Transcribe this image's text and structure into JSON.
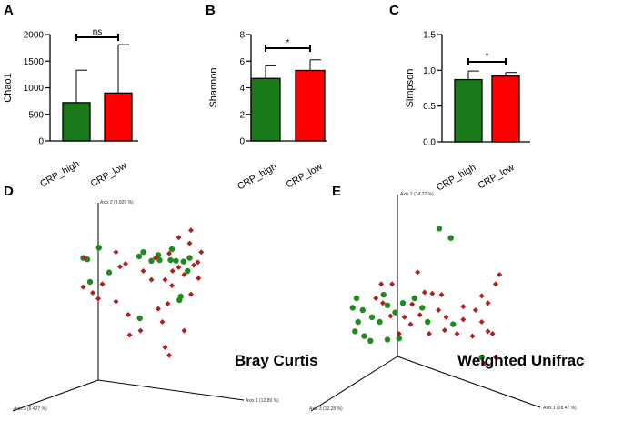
{
  "colors": {
    "high": "#1a7a1a",
    "low": "#ff0000",
    "pcoa_green": "#1e8b1e",
    "pcoa_red": "#b21e1e"
  },
  "chart_data": [
    {
      "panel": "A",
      "type": "bar",
      "ylabel": "Chao1",
      "ylim": [
        0,
        2000
      ],
      "yticks": [
        "0",
        "500",
        "1000",
        "1500",
        "2000"
      ],
      "ytick_values": [
        0,
        500,
        1000,
        1500,
        2000
      ],
      "categories": [
        "CRP_high",
        "CRP_low"
      ],
      "values": [
        720,
        900
      ],
      "errors": [
        610,
        910
      ],
      "significance": "ns"
    },
    {
      "panel": "B",
      "type": "bar",
      "ylabel": "Shannon",
      "ylim": [
        0,
        8
      ],
      "yticks": [
        "0",
        "2",
        "4",
        "6",
        "8"
      ],
      "ytick_values": [
        0,
        2,
        4,
        6,
        8
      ],
      "categories": [
        "CRP_high",
        "CRP_low"
      ],
      "values": [
        4.7,
        5.3
      ],
      "errors": [
        0.95,
        0.8
      ],
      "significance": "*"
    },
    {
      "panel": "C",
      "type": "bar",
      "ylabel": "Simpson",
      "ylim": [
        0,
        1.5
      ],
      "yticks": [
        "0.0",
        "0.5",
        "1.0",
        "1.5"
      ],
      "ytick_values": [
        0,
        0.5,
        1.0,
        1.5
      ],
      "categories": [
        "CRP_high",
        "CRP_low"
      ],
      "values": [
        0.87,
        0.92
      ],
      "errors": [
        0.12,
        0.05
      ],
      "significance": "*"
    },
    {
      "panel": "D",
      "type": "scatter",
      "method": "PCoA",
      "title": "Bray Curtis",
      "axis_labels": {
        "axis1": "Axis 1 (12.89 %)",
        "axis2": "Axis 2 (8.929 %)",
        "axis3": "Axis 3 (6.427 %)"
      },
      "series": [
        {
          "name": "CRP_high",
          "marker": "circle",
          "points": [
            [
              -0.55,
              0.72
            ],
            [
              0.1,
              0.66
            ],
            [
              0.32,
              0.62
            ],
            [
              0.52,
              0.7
            ],
            [
              -0.72,
              0.56
            ],
            [
              0.78,
              0.58
            ],
            [
              0.22,
              0.54
            ],
            [
              0.34,
              0.55
            ],
            [
              0.5,
              0.55
            ],
            [
              0.58,
              0.54
            ],
            [
              0.69,
              0.53
            ],
            [
              -0.4,
              0.38
            ],
            [
              0.75,
              0.4
            ],
            [
              -0.78,
              0.58
            ],
            [
              0.04,
              0.6
            ],
            [
              -0.68,
              0.25
            ],
            [
              0.65,
              0.05
            ],
            [
              0.63,
              0.0
            ],
            [
              0.05,
              -0.25
            ]
          ]
        },
        {
          "name": "CRP_low",
          "marker": "diamond",
          "points": [
            [
              0.8,
              0.96
            ],
            [
              0.62,
              0.86
            ],
            [
              0.78,
              0.78
            ],
            [
              0.95,
              0.66
            ],
            [
              -0.76,
              0.58
            ],
            [
              -0.3,
              0.66
            ],
            [
              -0.16,
              0.5
            ],
            [
              0.28,
              0.58
            ],
            [
              0.48,
              0.64
            ],
            [
              0.84,
              0.48
            ],
            [
              -0.24,
              0.46
            ],
            [
              0.62,
              0.45
            ],
            [
              0.53,
              0.4
            ],
            [
              0.9,
              0.52
            ],
            [
              0.52,
              0.2
            ],
            [
              0.91,
              0.3
            ],
            [
              0.7,
              0.35
            ],
            [
              0.1,
              0.4
            ],
            [
              0.22,
              0.28
            ],
            [
              -0.5,
              0.22
            ],
            [
              -0.78,
              0.18
            ],
            [
              -0.64,
              0.1
            ],
            [
              -0.56,
              0.02
            ],
            [
              0.42,
              0.28
            ],
            [
              0.46,
              -0.05
            ],
            [
              -0.3,
              -0.02
            ],
            [
              0.8,
              0.08
            ],
            [
              0.38,
              -0.3
            ],
            [
              -0.12,
              -0.2
            ],
            [
              -0.1,
              -0.48
            ],
            [
              0.06,
              -0.42
            ],
            [
              0.7,
              -0.42
            ],
            [
              0.32,
              -0.12
            ],
            [
              0.42,
              -0.65
            ],
            [
              0.48,
              -0.76
            ]
          ]
        }
      ]
    },
    {
      "panel": "E",
      "type": "scatter",
      "method": "PCoA",
      "title": "Weighted Unifrac",
      "axis_labels": {
        "axis1": "Axis 1 (28.47 %)",
        "axis2": "Axis 2 (14.22 %)",
        "axis3": "Axis 3 (12.28 %)"
      },
      "series": [
        {
          "name": "CRP_high",
          "marker": "circle",
          "points": [
            [
              0.27,
              0.99
            ],
            [
              0.42,
              0.91
            ],
            [
              -0.8,
              0.4
            ],
            [
              -0.45,
              0.43
            ],
            [
              -0.4,
              0.34
            ],
            [
              -0.85,
              0.32
            ],
            [
              -0.72,
              0.3
            ],
            [
              -0.2,
              0.36
            ],
            [
              -0.05,
              0.4
            ],
            [
              0.05,
              0.32
            ],
            [
              -0.3,
              0.28
            ],
            [
              -0.78,
              0.2
            ],
            [
              -0.6,
              0.24
            ],
            [
              -0.5,
              0.2
            ],
            [
              -0.82,
              0.12
            ],
            [
              -0.7,
              0.08
            ],
            [
              0.12,
              0.2
            ],
            [
              0.45,
              0.18
            ],
            [
              -0.62,
              0.04
            ],
            [
              -0.4,
              0.05
            ],
            [
              -0.25,
              0.06
            ],
            [
              0.82,
              -0.1
            ]
          ]
        },
        {
          "name": "CRP_low",
          "marker": "diamond",
          "points": [
            [
              -0.01,
              0.62
            ],
            [
              -0.48,
              0.52
            ],
            [
              -0.34,
              0.52
            ],
            [
              1.05,
              0.6
            ],
            [
              1.0,
              0.52
            ],
            [
              0.08,
              0.45
            ],
            [
              0.18,
              0.44
            ],
            [
              0.3,
              0.43
            ],
            [
              0.82,
              0.42
            ],
            [
              0.9,
              0.36
            ],
            [
              -0.55,
              0.4
            ],
            [
              -0.46,
              0.36
            ],
            [
              -0.08,
              0.35
            ],
            [
              0.26,
              0.3
            ],
            [
              0.58,
              0.33
            ],
            [
              0.74,
              0.3
            ],
            [
              -0.36,
              0.25
            ],
            [
              -0.18,
              0.24
            ],
            [
              0.02,
              0.26
            ],
            [
              0.36,
              0.24
            ],
            [
              0.82,
              0.2
            ],
            [
              0.58,
              0.22
            ],
            [
              -0.1,
              0.18
            ],
            [
              0.34,
              0.13
            ],
            [
              0.9,
              0.12
            ],
            [
              0.7,
              0.08
            ],
            [
              -0.25,
              0.1
            ],
            [
              0.14,
              0.1
            ],
            [
              0.5,
              0.1
            ],
            [
              0.96,
              0.1
            ],
            [
              1.0,
              -0.1
            ],
            [
              0.86,
              -0.15
            ]
          ]
        }
      ]
    }
  ]
}
